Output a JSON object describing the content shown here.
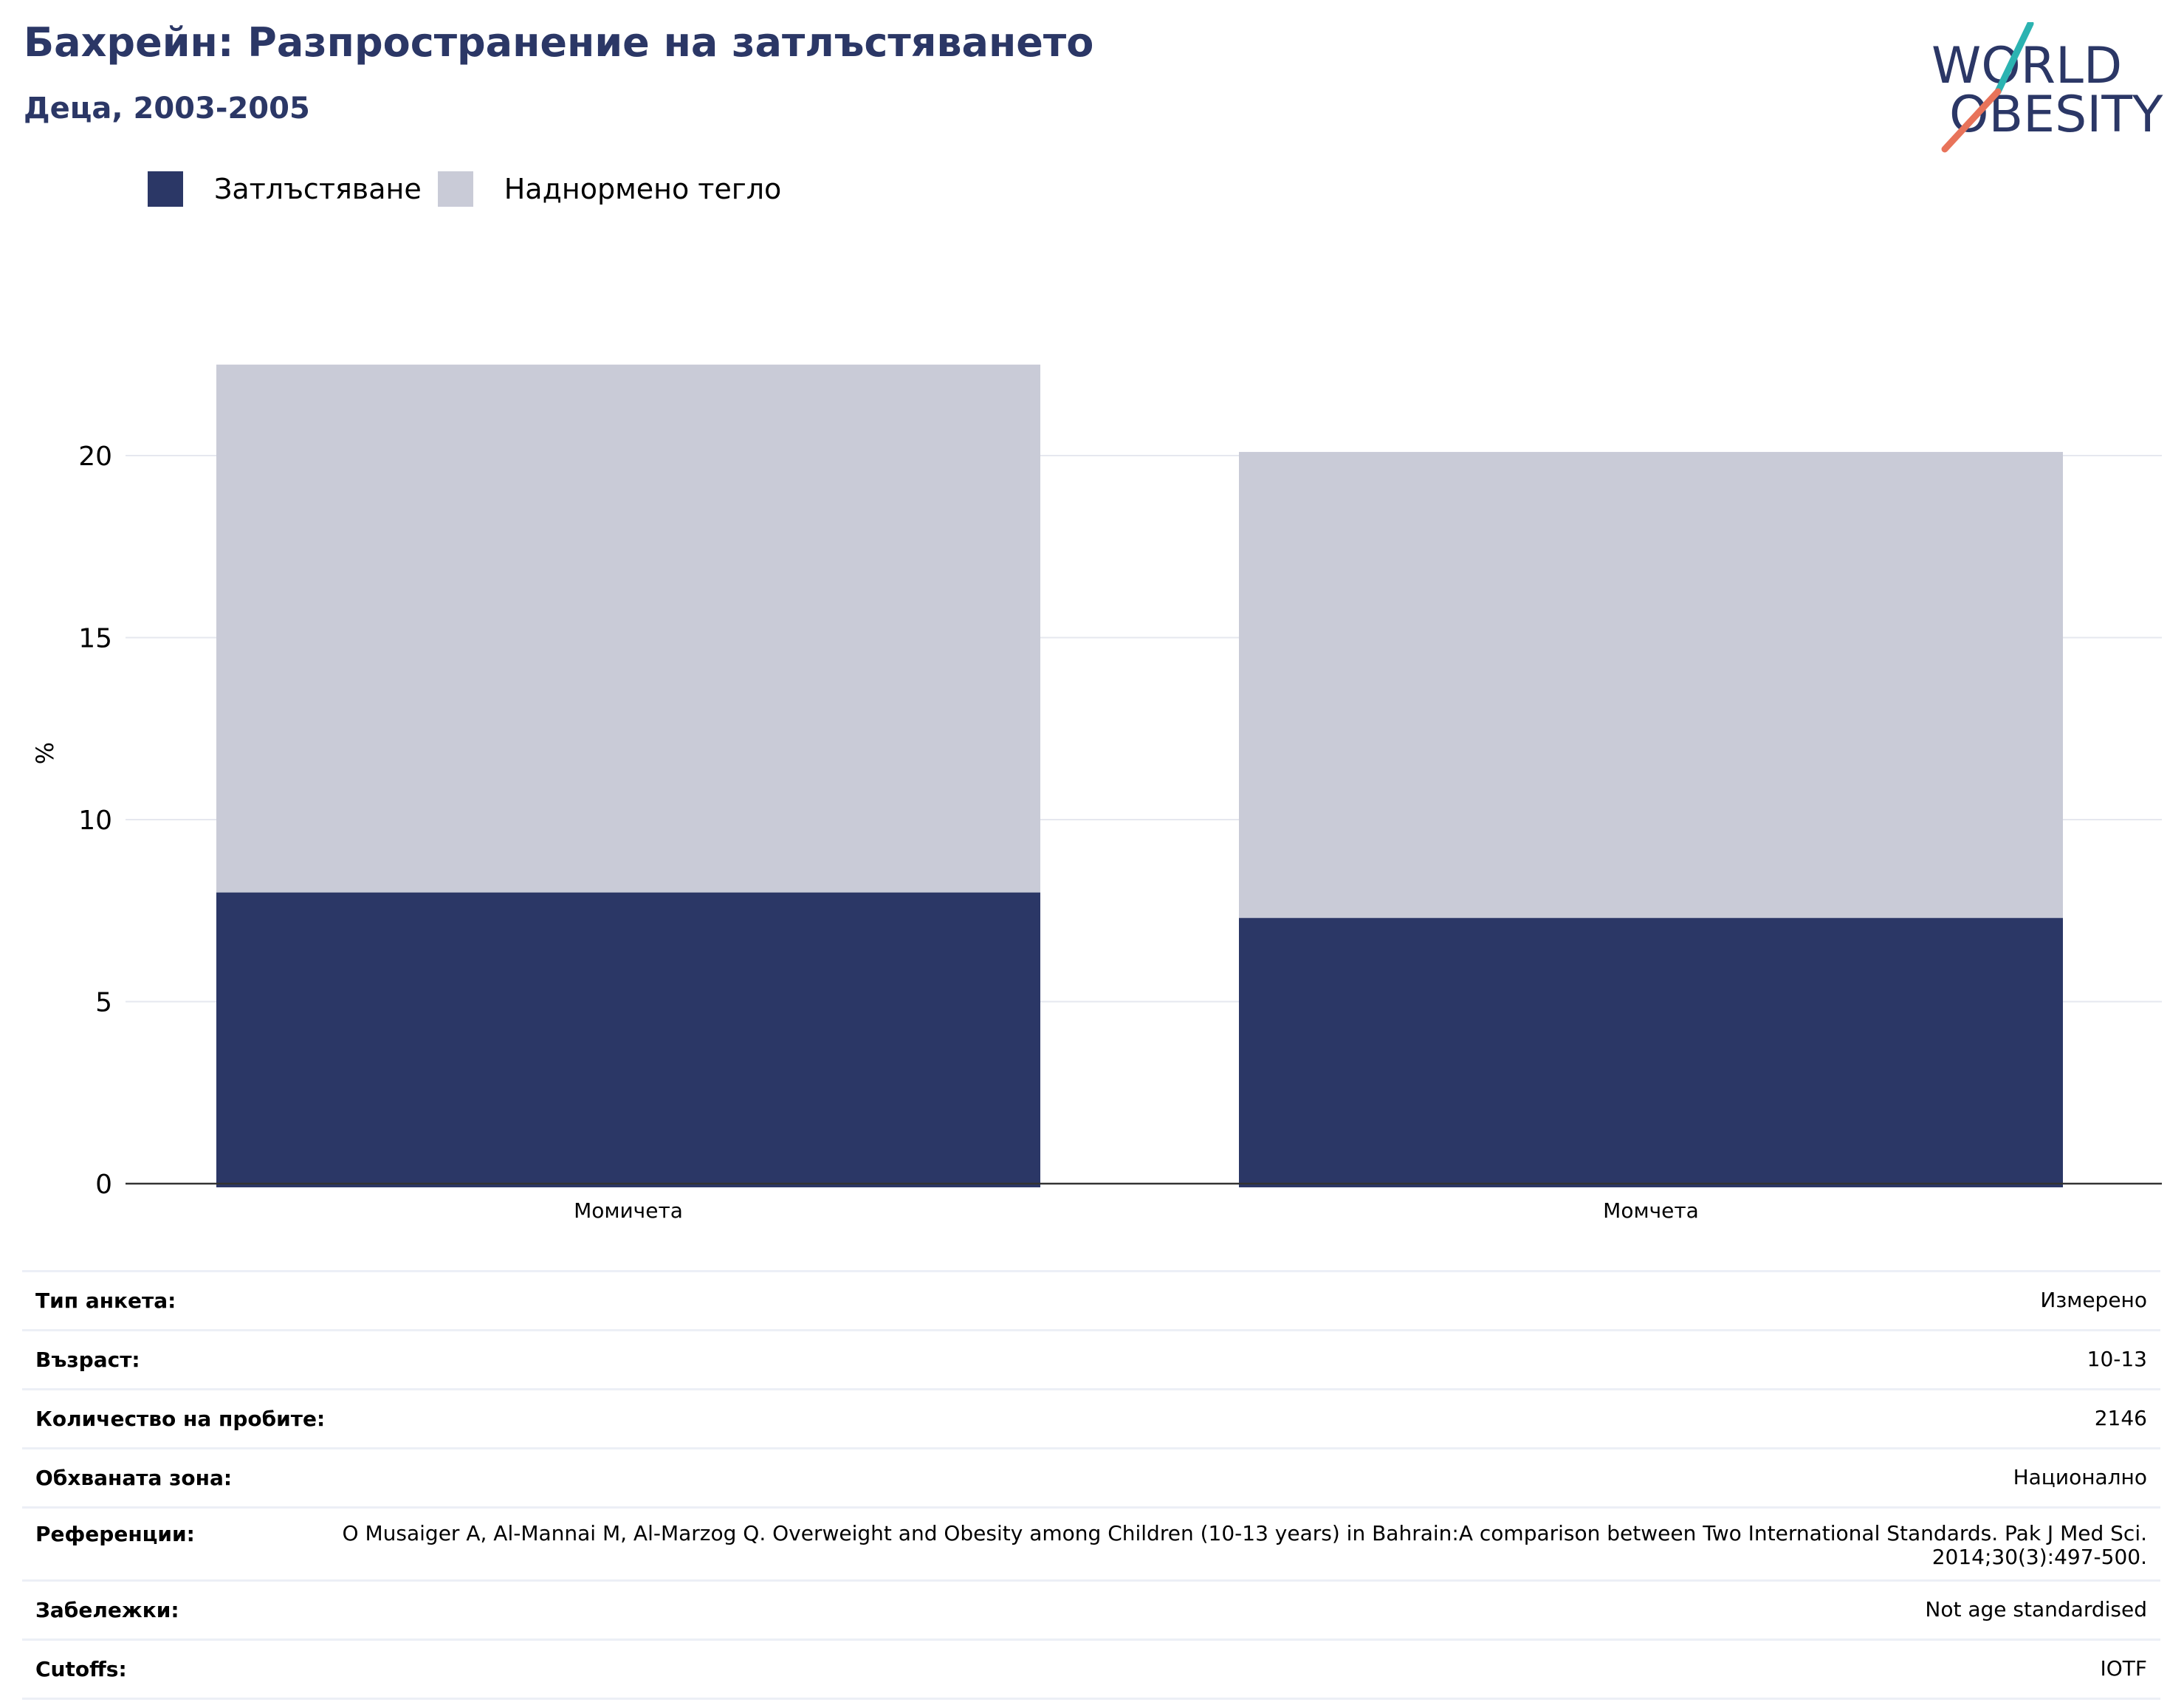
{
  "header": {
    "title": "Бахрейн: Разпространение на затлъстяването",
    "subtitle": "Деца, 2003-2005"
  },
  "logo": {
    "line1": "WORLD",
    "line2": "OBESITY",
    "colors": {
      "text": "#2b3766",
      "teal": "#2bb3b1",
      "coral": "#e8735a"
    }
  },
  "legend": {
    "items": [
      {
        "label": "Затлъстяване",
        "color": "#2b3766"
      },
      {
        "label": "Наднормено тегло",
        "color": "#c9cbd7"
      }
    ]
  },
  "chart_data": {
    "type": "bar",
    "stacked": true,
    "categories": [
      "Момичета",
      "Момчета"
    ],
    "series": [
      {
        "name": "Затлъстяване",
        "color": "#2b3766",
        "values": [
          8.0,
          7.3
        ]
      },
      {
        "name": "Наднормено тегло",
        "color": "#c9cbd7",
        "values": [
          14.5,
          12.8
        ]
      }
    ],
    "ylabel": "%",
    "ylim": [
      0,
      22.5
    ],
    "yticks": [
      0,
      5,
      10,
      15,
      20
    ],
    "grid": true,
    "legend_position": "top-left"
  },
  "info": {
    "rows": [
      {
        "key": "Тип анкета:",
        "value": "Измерено"
      },
      {
        "key": "Възраст:",
        "value": "10-13"
      },
      {
        "key": "Количество на пробите:",
        "value": "2146"
      },
      {
        "key": "Обхваната зона:",
        "value": "Национално"
      },
      {
        "key": "Референции:",
        "value": "O Musaiger A, Al-Mannai M, Al-Marzog Q. Overweight and Obesity among Children (10-13 years) in Bahrain:A comparison between Two International Standards. Pak J Med Sci. 2014;30(3):497-500."
      },
      {
        "key": "Забележки:",
        "value": "Not age standardised"
      },
      {
        "key": "Cutoffs:",
        "value": "IOTF"
      }
    ]
  }
}
